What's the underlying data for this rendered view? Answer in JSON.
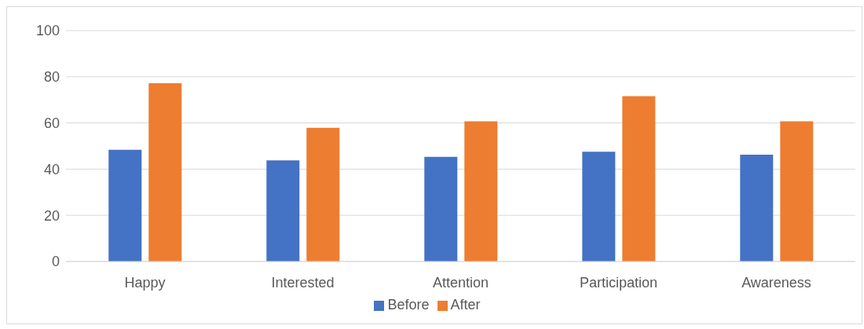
{
  "chart_data": {
    "type": "bar",
    "categories": [
      "Happy",
      "Interested",
      "Attention",
      "Participation",
      "Awareness"
    ],
    "series": [
      {
        "name": "Before",
        "color": "#4472c4",
        "values": [
          48.4,
          43.8,
          45.3,
          47.5,
          46.3
        ]
      },
      {
        "name": "After",
        "color": "#ed7d31",
        "values": [
          77.2,
          57.9,
          60.7,
          71.6,
          60.7
        ]
      }
    ],
    "ylim": [
      0,
      100
    ],
    "yticks": [
      0,
      20,
      40,
      60,
      80,
      100
    ],
    "grid": "y",
    "legend": "bottom"
  }
}
